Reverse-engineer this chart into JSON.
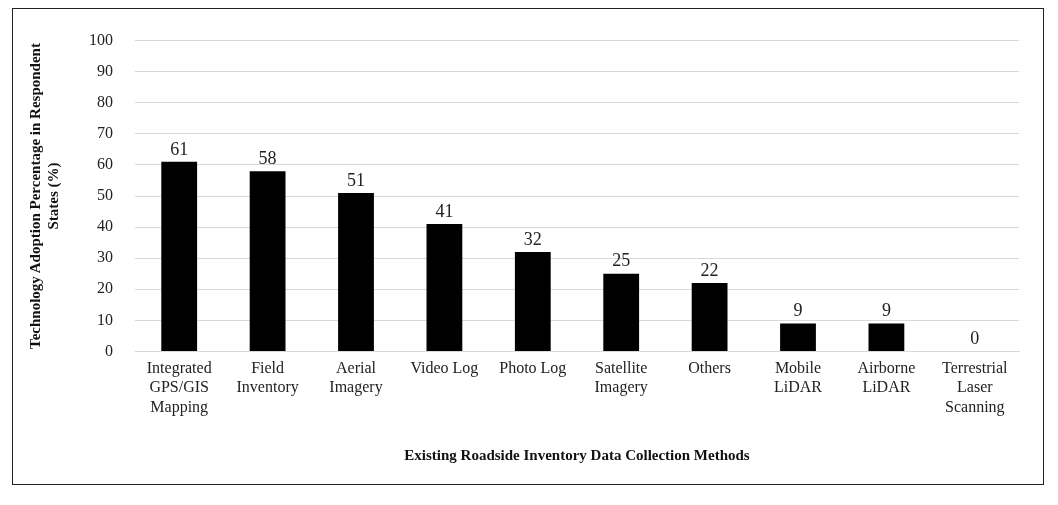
{
  "chart_data": {
    "type": "bar",
    "xlabel": "Existing Roadside Inventory Data Collection Methods",
    "ylabel": "Technology Adoption Percentage in Respondent States (%)",
    "categories": [
      "Integrated GPS/GIS Mapping",
      "Field Inventory",
      "Aerial Imagery",
      "Video Log",
      "Photo Log",
      "Satellite Imagery",
      "Others",
      "Mobile LiDAR",
      "Airborne LiDAR",
      "Terrestrial Laser Scanning"
    ],
    "values": [
      61,
      58,
      51,
      41,
      32,
      25,
      22,
      9,
      9,
      0
    ],
    "color": "#000000",
    "ylim": [
      0,
      100
    ],
    "yticks": [
      0,
      10,
      20,
      30,
      40,
      50,
      60,
      70,
      80,
      90,
      100
    ],
    "grid": "y",
    "data_labels": true
  }
}
